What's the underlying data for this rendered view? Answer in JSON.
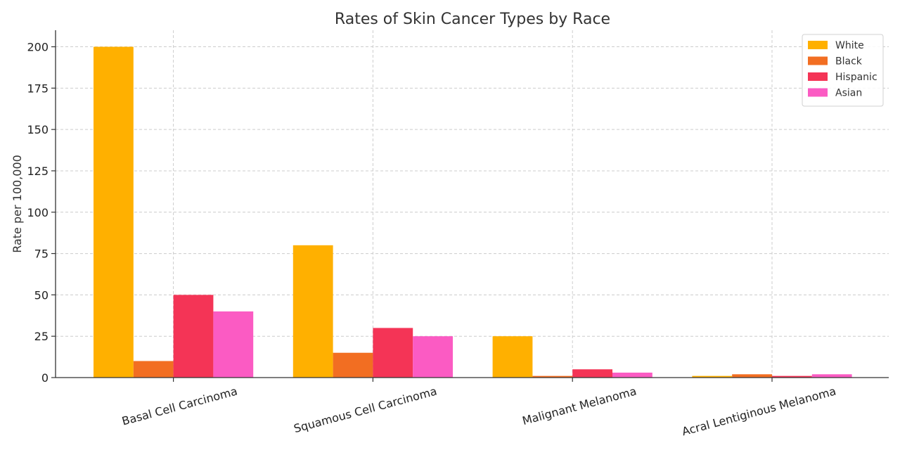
{
  "chart_data": {
    "type": "bar",
    "title": "Rates of Skin Cancer Types by Race",
    "xlabel": "",
    "ylabel": "Rate per 100,000",
    "ylim": [
      0,
      210
    ],
    "yticks": [
      0,
      25,
      50,
      75,
      100,
      125,
      150,
      175,
      200
    ],
    "grid": true,
    "legend_position": "top-right",
    "categories": [
      "Basal Cell Carcinoma",
      "Squamous Cell Carcinoma",
      "Malignant Melanoma",
      "Acral Lentiginous Melanoma"
    ],
    "series": [
      {
        "name": "White",
        "color": "#FFB000",
        "values": [
          200,
          80,
          25,
          1
        ]
      },
      {
        "name": "Black",
        "color": "#F26E22",
        "values": [
          10,
          15,
          1,
          2
        ]
      },
      {
        "name": "Hispanic",
        "color": "#F43456",
        "values": [
          50,
          30,
          5,
          1
        ]
      },
      {
        "name": "Asian",
        "color": "#FB5BC3",
        "values": [
          40,
          25,
          3,
          2
        ]
      }
    ]
  }
}
